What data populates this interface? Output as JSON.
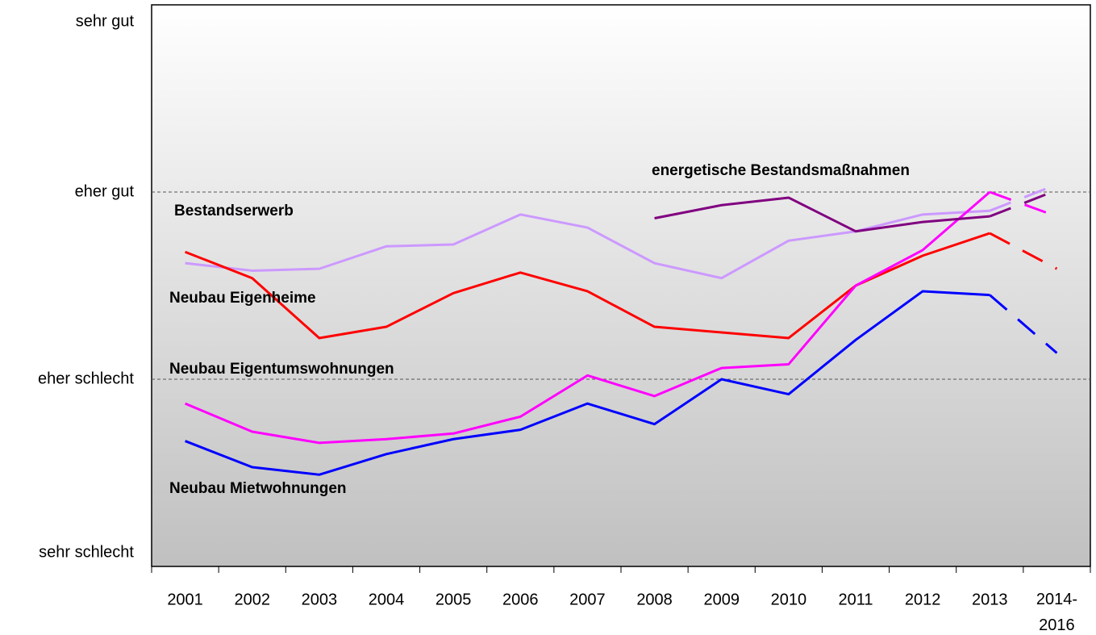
{
  "chart_data": {
    "type": "line",
    "categories": [
      "2001",
      "2002",
      "2003",
      "2004",
      "2005",
      "2006",
      "2007",
      "2008",
      "2009",
      "2010",
      "2011",
      "2012",
      "2013",
      "2014-2016"
    ],
    "ylim": [
      1,
      4
    ],
    "yticks": [
      {
        "value": 1,
        "label": "sehr schlecht"
      },
      {
        "value": 2,
        "label": "eher schlecht"
      },
      {
        "value": 3,
        "label": "eher gut"
      },
      {
        "value": 4,
        "label": "sehr gut"
      }
    ],
    "grid": true,
    "dash_last_segment": true,
    "series": [
      {
        "name": "Bestandserwerb",
        "color": "#cc99ff",
        "values": [
          2.62,
          2.58,
          2.59,
          2.71,
          2.72,
          2.88,
          2.81,
          2.62,
          2.54,
          2.74,
          2.79,
          2.88,
          2.9,
          3.04
        ]
      },
      {
        "name": "Neubau Eigenheime",
        "color": "#ff0000",
        "values": [
          2.68,
          2.54,
          2.22,
          2.28,
          2.46,
          2.57,
          2.47,
          2.28,
          2.25,
          2.22,
          2.5,
          2.66,
          2.78,
          2.59
        ]
      },
      {
        "name": "Neubau Eigentumswohnungen",
        "color": "#ff00ff",
        "values": [
          1.87,
          1.72,
          1.66,
          1.68,
          1.71,
          1.8,
          2.02,
          1.91,
          2.06,
          2.08,
          2.5,
          2.69,
          3.0,
          2.87
        ]
      },
      {
        "name": "Neubau Mietwohnungen",
        "color": "#0000ff",
        "values": [
          1.67,
          1.53,
          1.49,
          1.6,
          1.68,
          1.73,
          1.87,
          1.76,
          2.0,
          1.92,
          2.21,
          2.47,
          2.45,
          2.14
        ]
      },
      {
        "name": "energetische Bestandsmaßnahmen",
        "color": "#800080",
        "values": [
          null,
          null,
          null,
          null,
          null,
          null,
          null,
          2.86,
          2.93,
          2.97,
          2.79,
          2.84,
          2.87,
          3.01
        ]
      }
    ]
  }
}
